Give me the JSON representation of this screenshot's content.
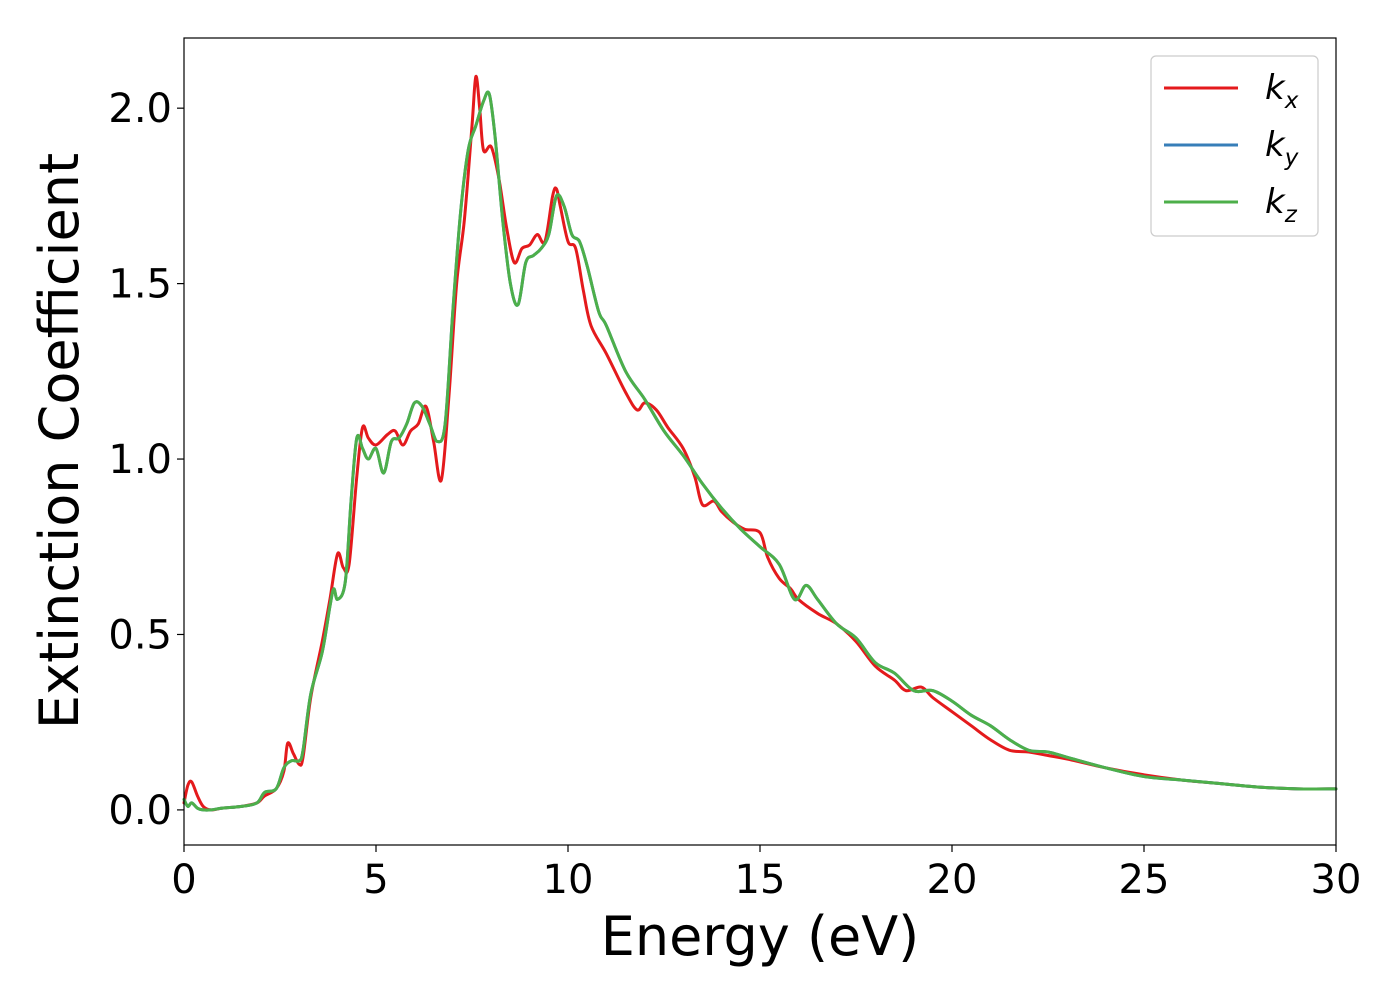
{
  "chart_data": {
    "type": "line",
    "title": "",
    "xlabel": "Energy (eV)",
    "ylabel": "Extinction Coefficient",
    "xlim": [
      0,
      30
    ],
    "ylim": [
      -0.1,
      2.2
    ],
    "xticks": [
      0,
      5,
      10,
      15,
      20,
      25,
      30
    ],
    "xtick_labels": [
      "0",
      "5",
      "10",
      "15",
      "20",
      "25",
      "30"
    ],
    "yticks": [
      0.0,
      0.5,
      1.0,
      1.5,
      2.0
    ],
    "ytick_labels": [
      "0.0",
      "0.5",
      "1.0",
      "1.5",
      "2.0"
    ],
    "grid": false,
    "legend_position": "top-right",
    "series": [
      {
        "name": "kx",
        "label_main": "k",
        "label_sub": "x",
        "color": "#e41a1c",
        "x": [
          0,
          0.1,
          0.2,
          0.35,
          0.5,
          0.7,
          1.0,
          1.5,
          1.9,
          2.1,
          2.4,
          2.6,
          2.7,
          2.85,
          3.0,
          3.1,
          3.3,
          3.6,
          3.8,
          4.0,
          4.15,
          4.3,
          4.5,
          4.65,
          4.8,
          5.0,
          5.3,
          5.5,
          5.7,
          5.9,
          6.1,
          6.3,
          6.5,
          6.7,
          6.9,
          7.1,
          7.3,
          7.5,
          7.6,
          7.7,
          7.8,
          8.0,
          8.2,
          8.4,
          8.6,
          8.8,
          9.0,
          9.2,
          9.4,
          9.6,
          9.7,
          9.8,
          10.0,
          10.2,
          10.4,
          10.6,
          11.0,
          11.5,
          11.8,
          12.0,
          12.3,
          12.6,
          13.0,
          13.3,
          13.5,
          13.8,
          14.0,
          14.3,
          14.6,
          15.0,
          15.2,
          15.5,
          15.8,
          16.0,
          16.5,
          17.0,
          17.5,
          18.0,
          18.5,
          18.8,
          19.2,
          19.5,
          20.0,
          20.5,
          21.0,
          21.5,
          22.0,
          22.5,
          23.0,
          24.0,
          25.0,
          26.0,
          27.0,
          28.0,
          29.0,
          30.0
        ],
        "y": [
          0.02,
          0.07,
          0.08,
          0.04,
          0.01,
          0.0,
          0.005,
          0.01,
          0.02,
          0.04,
          0.06,
          0.11,
          0.19,
          0.16,
          0.13,
          0.15,
          0.32,
          0.48,
          0.6,
          0.73,
          0.69,
          0.7,
          0.95,
          1.09,
          1.06,
          1.04,
          1.07,
          1.08,
          1.04,
          1.08,
          1.1,
          1.15,
          1.05,
          0.94,
          1.18,
          1.5,
          1.68,
          1.95,
          2.09,
          2.0,
          1.88,
          1.89,
          1.8,
          1.66,
          1.56,
          1.6,
          1.61,
          1.64,
          1.62,
          1.75,
          1.77,
          1.72,
          1.62,
          1.6,
          1.48,
          1.38,
          1.3,
          1.19,
          1.14,
          1.16,
          1.14,
          1.09,
          1.03,
          0.95,
          0.87,
          0.88,
          0.85,
          0.82,
          0.8,
          0.79,
          0.72,
          0.66,
          0.63,
          0.6,
          0.56,
          0.53,
          0.48,
          0.41,
          0.37,
          0.34,
          0.35,
          0.32,
          0.28,
          0.24,
          0.2,
          0.17,
          0.165,
          0.155,
          0.145,
          0.12,
          0.1,
          0.085,
          0.075,
          0.065,
          0.06,
          0.06
        ]
      },
      {
        "name": "ky",
        "label_main": "k",
        "label_sub": "y",
        "color": "#377eb8",
        "x": [
          0,
          0.1,
          0.2,
          0.35,
          0.5,
          0.7,
          1.0,
          1.5,
          1.9,
          2.1,
          2.4,
          2.6,
          2.8,
          3.0,
          3.1,
          3.3,
          3.6,
          3.8,
          3.9,
          4.0,
          4.2,
          4.35,
          4.5,
          4.65,
          4.8,
          5.0,
          5.2,
          5.4,
          5.6,
          5.8,
          6.0,
          6.2,
          6.4,
          6.6,
          6.8,
          7.0,
          7.2,
          7.4,
          7.6,
          7.8,
          7.95,
          8.1,
          8.3,
          8.5,
          8.7,
          8.9,
          9.1,
          9.3,
          9.5,
          9.7,
          9.9,
          10.1,
          10.3,
          10.5,
          10.8,
          11.0,
          11.5,
          12.0,
          12.5,
          13.0,
          13.5,
          14.0,
          14.5,
          15.0,
          15.5,
          15.9,
          16.2,
          16.5,
          17.0,
          17.5,
          18.0,
          18.5,
          19.0,
          19.5,
          20.0,
          20.5,
          21.0,
          21.5,
          22.0,
          22.5,
          23.0,
          24.0,
          25.0,
          26.0,
          27.0,
          28.0,
          29.0,
          30.0
        ],
        "y": [
          0.03,
          0.01,
          0.02,
          0.005,
          0.0,
          0.0,
          0.005,
          0.01,
          0.02,
          0.05,
          0.06,
          0.12,
          0.14,
          0.14,
          0.17,
          0.33,
          0.45,
          0.58,
          0.63,
          0.6,
          0.65,
          0.88,
          1.06,
          1.03,
          1.0,
          1.03,
          0.96,
          1.05,
          1.06,
          1.1,
          1.16,
          1.15,
          1.1,
          1.05,
          1.1,
          1.42,
          1.7,
          1.88,
          1.95,
          2.02,
          2.04,
          1.92,
          1.68,
          1.5,
          1.44,
          1.56,
          1.58,
          1.6,
          1.64,
          1.75,
          1.72,
          1.64,
          1.62,
          1.55,
          1.42,
          1.38,
          1.25,
          1.17,
          1.08,
          1.01,
          0.93,
          0.86,
          0.8,
          0.75,
          0.7,
          0.6,
          0.64,
          0.6,
          0.53,
          0.49,
          0.42,
          0.39,
          0.34,
          0.34,
          0.31,
          0.27,
          0.24,
          0.2,
          0.17,
          0.165,
          0.15,
          0.12,
          0.095,
          0.085,
          0.075,
          0.065,
          0.06,
          0.06
        ]
      },
      {
        "name": "kz",
        "label_main": "k",
        "label_sub": "z",
        "color": "#4daf4a",
        "x": [
          0,
          0.1,
          0.2,
          0.35,
          0.5,
          0.7,
          1.0,
          1.5,
          1.9,
          2.1,
          2.4,
          2.6,
          2.8,
          3.0,
          3.1,
          3.3,
          3.6,
          3.8,
          3.9,
          4.0,
          4.2,
          4.35,
          4.5,
          4.65,
          4.8,
          5.0,
          5.2,
          5.4,
          5.6,
          5.8,
          6.0,
          6.2,
          6.4,
          6.6,
          6.8,
          7.0,
          7.2,
          7.4,
          7.6,
          7.8,
          7.95,
          8.1,
          8.3,
          8.5,
          8.7,
          8.9,
          9.1,
          9.3,
          9.5,
          9.7,
          9.9,
          10.1,
          10.3,
          10.5,
          10.8,
          11.0,
          11.5,
          12.0,
          12.5,
          13.0,
          13.5,
          14.0,
          14.5,
          15.0,
          15.5,
          15.9,
          16.2,
          16.5,
          17.0,
          17.5,
          18.0,
          18.5,
          19.0,
          19.5,
          20.0,
          20.5,
          21.0,
          21.5,
          22.0,
          22.5,
          23.0,
          24.0,
          25.0,
          26.0,
          27.0,
          28.0,
          29.0,
          30.0
        ],
        "y": [
          0.03,
          0.01,
          0.02,
          0.005,
          0.0,
          0.0,
          0.005,
          0.01,
          0.02,
          0.05,
          0.06,
          0.12,
          0.14,
          0.14,
          0.17,
          0.33,
          0.45,
          0.58,
          0.63,
          0.6,
          0.65,
          0.88,
          1.06,
          1.03,
          1.0,
          1.03,
          0.96,
          1.05,
          1.06,
          1.1,
          1.16,
          1.15,
          1.1,
          1.05,
          1.1,
          1.42,
          1.7,
          1.88,
          1.95,
          2.02,
          2.04,
          1.92,
          1.68,
          1.5,
          1.44,
          1.56,
          1.58,
          1.6,
          1.64,
          1.75,
          1.72,
          1.64,
          1.62,
          1.55,
          1.42,
          1.38,
          1.25,
          1.17,
          1.08,
          1.01,
          0.93,
          0.86,
          0.8,
          0.75,
          0.7,
          0.6,
          0.64,
          0.6,
          0.53,
          0.49,
          0.42,
          0.39,
          0.34,
          0.34,
          0.31,
          0.27,
          0.24,
          0.2,
          0.17,
          0.165,
          0.15,
          0.12,
          0.095,
          0.085,
          0.075,
          0.065,
          0.06,
          0.06
        ]
      }
    ]
  }
}
